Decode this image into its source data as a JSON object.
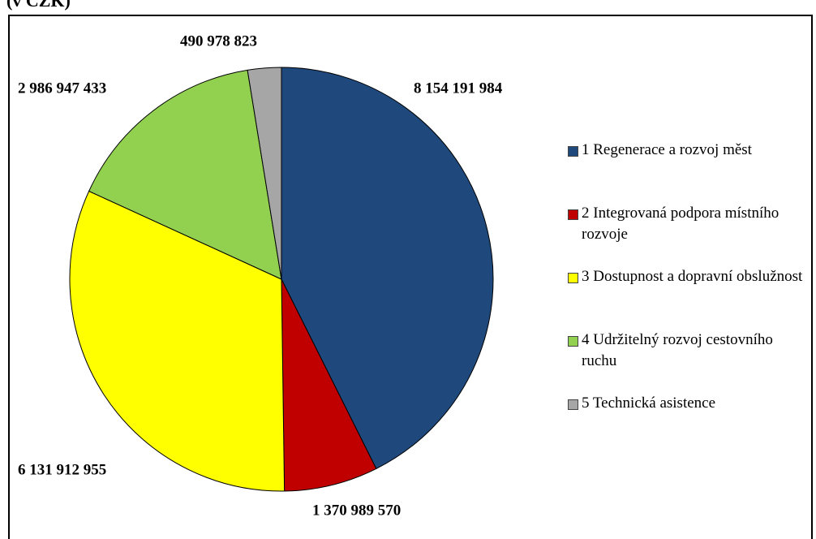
{
  "chart_data": {
    "type": "pie",
    "title": "(v CZK)",
    "categories": [
      "1 Regenerace a rozvoj měst",
      "2 Integrovaná podpora místního rozvoje",
      "3 Dostupnost a dopravní obslužnost",
      "4 Udržitelný rozvoj cestovního ruchu",
      "5 Technická asistence"
    ],
    "values": [
      8154191984,
      1370989570,
      6131912955,
      2986947433,
      490978823
    ],
    "value_labels": [
      "8 154 191 984",
      "1 370 989 570",
      "6 131 912 955",
      "2 986 947 433",
      "490 978 823"
    ],
    "colors": [
      "#1f497d",
      "#c00000",
      "#ffff00",
      "#92d050",
      "#a6a6a6"
    ],
    "legend": "right"
  }
}
